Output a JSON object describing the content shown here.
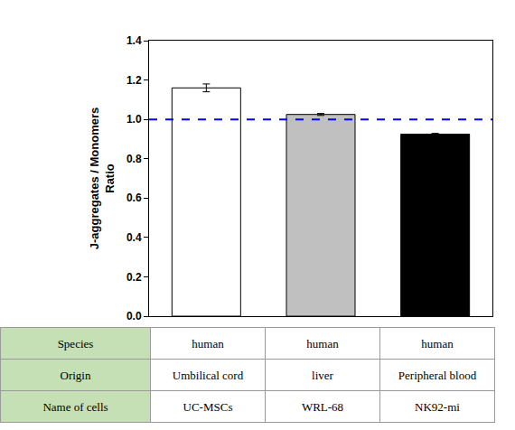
{
  "chart_data": {
    "type": "bar",
    "y_label": [
      "J-aggregates / Monomers",
      "Ratio"
    ],
    "categories": [
      "UC-MSCs",
      "WRL-68",
      "NK92-mi"
    ],
    "values": [
      1.16,
      1.025,
      0.925
    ],
    "errors": [
      0.02,
      0.005,
      0.004
    ],
    "colors": [
      "#ffffff",
      "#c0c0c0",
      "#000000"
    ],
    "ylim": [
      0,
      1.4
    ],
    "yticks": [
      {
        "value": 0,
        "label": "0.0"
      },
      {
        "value": 0.2,
        "label": "0.2"
      },
      {
        "value": 0.4,
        "label": "0.4"
      },
      {
        "value": 0.6,
        "label": "0.6"
      },
      {
        "value": 0.8,
        "label": "0.8"
      },
      {
        "value": 1.0,
        "label": "1.0"
      },
      {
        "value": 1.2,
        "label": "1.2"
      },
      {
        "value": 1.4,
        "label": "1.4"
      }
    ],
    "reference_line": {
      "value": 1.0,
      "color": "#0000ff",
      "line_style": "dash"
    },
    "tick_labels": "y",
    "grid": false,
    "table": {
      "rows": [
        {
          "label": "Species",
          "cells": [
            "human",
            "human",
            "human"
          ]
        },
        {
          "label": "Origin",
          "cells": [
            "Umbilical cord",
            "liver",
            "Peripheral blood"
          ]
        }
      ],
      "category_row_label": "Name of cells"
    }
  }
}
